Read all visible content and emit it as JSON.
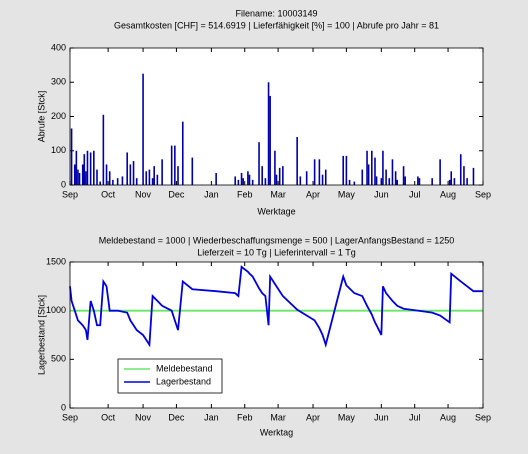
{
  "chart_data": [
    {
      "type": "bar",
      "title": "Filename: 10003149",
      "subtitle": "Gesamtkosten [CHF] = 514.6919  |  Lieferfähigkeit [%] = 100  |  Abrufe pro Jahr = 81",
      "xlabel": "Werktage",
      "ylabel": "Abrufe [Stck]",
      "color": "#0000a8",
      "x": [
        1,
        3,
        4,
        5,
        6,
        8,
        9,
        10,
        11,
        13,
        15,
        17,
        19,
        21,
        23,
        25,
        27,
        30,
        33,
        36,
        38,
        40,
        42,
        46,
        48,
        50,
        52,
        53,
        55,
        58,
        64,
        66,
        68,
        71,
        77,
        92,
        104,
        106,
        108,
        109,
        112,
        113,
        115,
        119,
        121,
        123,
        125,
        126,
        129,
        130,
        132,
        134,
        143,
        145,
        149,
        154,
        157,
        159,
        161,
        172,
        174,
        176,
        179,
        184,
        187,
        188,
        190,
        192,
        193,
        196,
        197,
        199,
        201,
        203,
        205,
        206,
        210,
        211,
        219,
        220,
        228,
        233,
        239,
        240,
        242,
        246,
        248,
        250,
        254
      ],
      "values": [
        165,
        60,
        100,
        45,
        35,
        60,
        90,
        40,
        100,
        95,
        100,
        45,
        10,
        205,
        60,
        40,
        15,
        20,
        25,
        95,
        60,
        70,
        20,
        325,
        40,
        45,
        20,
        55,
        30,
        75,
        115,
        115,
        55,
        185,
        80,
        35,
        25,
        15,
        35,
        20,
        40,
        30,
        15,
        125,
        55,
        20,
        300,
        260,
        100,
        30,
        50,
        55,
        140,
        25,
        40,
        75,
        75,
        30,
        45,
        85,
        85,
        15,
        10,
        45,
        100,
        60,
        100,
        80,
        25,
        20,
        100,
        45,
        20,
        75,
        40,
        15,
        55,
        25,
        25,
        20,
        20,
        75,
        15,
        40,
        20,
        90,
        55,
        20,
        50
      ],
      "xlim": [
        0,
        260
      ],
      "ylim": [
        0,
        400
      ],
      "xticks": [
        {
          "value": 0,
          "label": "Sep"
        },
        {
          "value": 24,
          "label": "Oct"
        },
        {
          "value": 46,
          "label": "Nov"
        },
        {
          "value": 67,
          "label": "Dec"
        },
        {
          "value": 89,
          "label": "Jan"
        },
        {
          "value": 110,
          "label": "Feb"
        },
        {
          "value": 131,
          "label": "Mar"
        },
        {
          "value": 153,
          "label": "Apr"
        },
        {
          "value": 174,
          "label": "May"
        },
        {
          "value": 196,
          "label": "Jun"
        },
        {
          "value": 217,
          "label": "Jul"
        },
        {
          "value": 238,
          "label": "Aug"
        },
        {
          "value": 260,
          "label": "Sep"
        }
      ],
      "yticks": [
        0,
        100,
        200,
        300,
        400
      ]
    },
    {
      "type": "line",
      "title": "Meldebestand = 1000  |  Wiederbeschaffungsmenge = 500  |  LagerAnfangsBestand = 1250",
      "subtitle": "Lieferzeit = 10 Tg  |  Lieferintervall = 1 Tg",
      "xlabel": "Werktag",
      "ylabel": "Lagerbestand [Stck]",
      "legend": "lower left",
      "series": [
        {
          "name": "Meldebestand",
          "color": "#66e866",
          "x": [
            0,
            260
          ],
          "values": [
            1000,
            1000
          ]
        },
        {
          "name": "Lagerbestand",
          "color": "#0000e0",
          "x": [
            0,
            1,
            3,
            5,
            8,
            10,
            11,
            13,
            15,
            17,
            19,
            21,
            23,
            25,
            30,
            36,
            38,
            40,
            42,
            46,
            48,
            50,
            52,
            55,
            58,
            64,
            66,
            68,
            71,
            77,
            92,
            104,
            106,
            108,
            112,
            113,
            115,
            119,
            121,
            123,
            125,
            126,
            130,
            132,
            134,
            143,
            145,
            149,
            154,
            157,
            159,
            161,
            172,
            174,
            179,
            184,
            187,
            190,
            192,
            193,
            196,
            197,
            199,
            203,
            206,
            210,
            219,
            228,
            233,
            239,
            240,
            246,
            250,
            254,
            260
          ],
          "values": [
            1250,
            1100,
            1000,
            900,
            850,
            800,
            700,
            1100,
            1000,
            850,
            850,
            1300,
            1250,
            1000,
            1000,
            980,
            900,
            850,
            800,
            750,
            700,
            650,
            1150,
            1100,
            1050,
            1000,
            900,
            800,
            1300,
            1220,
            1200,
            1180,
            1150,
            1450,
            1400,
            1380,
            1350,
            1230,
            1180,
            1150,
            850,
            1350,
            1250,
            1200,
            1150,
            1010,
            990,
            950,
            900,
            820,
            750,
            650,
            1350,
            1260,
            1180,
            1150,
            1050,
            960,
            880,
            850,
            750,
            1250,
            1180,
            1100,
            1050,
            1020,
            1000,
            980,
            950,
            880,
            1380,
            1300,
            1250,
            1200,
            1200
          ]
        }
      ],
      "xlim": [
        0,
        260
      ],
      "ylim": [
        0,
        1500
      ],
      "xticks": [
        {
          "value": 0,
          "label": "Sep"
        },
        {
          "value": 24,
          "label": "Oct"
        },
        {
          "value": 46,
          "label": "Nov"
        },
        {
          "value": 67,
          "label": "Dec"
        },
        {
          "value": 89,
          "label": "Jan"
        },
        {
          "value": 110,
          "label": "Feb"
        },
        {
          "value": 131,
          "label": "Mar"
        },
        {
          "value": 153,
          "label": "Apr"
        },
        {
          "value": 174,
          "label": "May"
        },
        {
          "value": 196,
          "label": "Jun"
        },
        {
          "value": 217,
          "label": "Jul"
        },
        {
          "value": 238,
          "label": "Aug"
        },
        {
          "value": 260,
          "label": "Sep"
        }
      ],
      "yticks": [
        0,
        500,
        1000,
        1500
      ]
    }
  ]
}
